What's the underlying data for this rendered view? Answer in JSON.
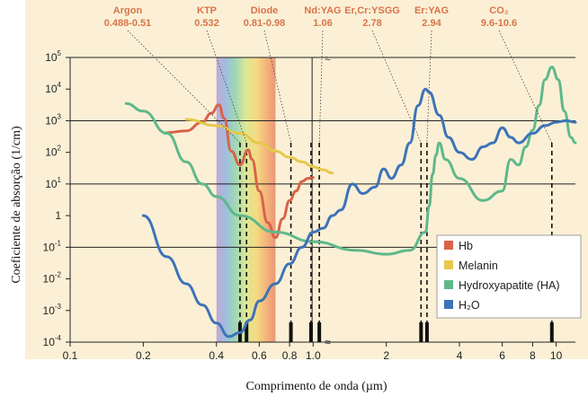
{
  "chart_data": {
    "type": "line",
    "xscale": "log",
    "yscale": "log",
    "xlim": [
      0.1,
      12
    ],
    "ylim": [
      0.0001,
      100000
    ],
    "xlabel": "Comprimento de onda (µm)",
    "ylabel": "Coeficiente de absorção (1/cm)",
    "x_ticks": [
      {
        "v": 0.1,
        "label": "0.1"
      },
      {
        "v": 0.2,
        "label": "0.2"
      },
      {
        "v": 0.4,
        "label": "0.4"
      },
      {
        "v": 0.6,
        "label": "0.6"
      },
      {
        "v": 0.8,
        "label": "0.8"
      },
      {
        "v": 1.0,
        "label": "1.0"
      },
      {
        "v": 2,
        "label": "2"
      },
      {
        "v": 4,
        "label": "4"
      },
      {
        "v": 6,
        "label": "6"
      },
      {
        "v": 8,
        "label": "8"
      },
      {
        "v": 10,
        "label": "10"
      }
    ],
    "y_ticks": [
      {
        "v": 100000,
        "base": "10",
        "exp": "5"
      },
      {
        "v": 10000,
        "base": "10",
        "exp": "4"
      },
      {
        "v": 1000,
        "base": "10",
        "exp": "3"
      },
      {
        "v": 100,
        "base": "10",
        "exp": "2"
      },
      {
        "v": 10,
        "base": "10",
        "exp": "1"
      },
      {
        "v": 1,
        "base": "1",
        "exp": ""
      },
      {
        "v": 0.1,
        "base": "10",
        "exp": "-1"
      },
      {
        "v": 0.01,
        "base": "10",
        "exp": "-2"
      },
      {
        "v": 0.001,
        "base": "10",
        "exp": "-3"
      },
      {
        "v": 0.0001,
        "base": "10",
        "exp": "-4"
      }
    ],
    "gridlines_y": [
      100000,
      1000,
      10,
      0.1
    ],
    "lasers": [
      {
        "name": "Argon",
        "range": "0.488-0.51",
        "x": 0.5
      },
      {
        "name": "KTP",
        "range": "0.532",
        "x": 0.532
      },
      {
        "name": "Diode",
        "range": "0.81-0.98",
        "x": 0.81
      },
      {
        "name": "Diode",
        "range": "",
        "x": 0.98
      },
      {
        "name": "Nd:YAG",
        "range": "1.06",
        "x": 1.06
      },
      {
        "name": "Er,Cr:YSGG",
        "range": "2.78",
        "x": 2.78
      },
      {
        "name": "Er:YAG",
        "range": "2.94",
        "x": 2.94
      },
      {
        "name": "CO₂",
        "range": "9.6-10.6",
        "x": 9.6
      }
    ],
    "visible_spectrum": [
      0.4,
      0.7
    ],
    "series": [
      {
        "name": "Hb",
        "color": "#d9624a",
        "points": [
          [
            0.25,
            420
          ],
          [
            0.3,
            480
          ],
          [
            0.35,
            900
          ],
          [
            0.38,
            1700
          ],
          [
            0.41,
            3200
          ],
          [
            0.43,
            1200
          ],
          [
            0.46,
            110
          ],
          [
            0.5,
            40
          ],
          [
            0.54,
            120
          ],
          [
            0.56,
            60
          ],
          [
            0.6,
            6
          ],
          [
            0.65,
            0.6
          ],
          [
            0.7,
            0.2
          ],
          [
            0.75,
            0.8
          ],
          [
            0.8,
            3
          ],
          [
            0.85,
            6
          ],
          [
            0.9,
            12
          ],
          [
            0.95,
            15
          ],
          [
            1.0,
            16
          ]
        ]
      },
      {
        "name": "Melanin",
        "color": "#e6c84a",
        "points": [
          [
            0.3,
            1100
          ],
          [
            0.4,
            700
          ],
          [
            0.5,
            400
          ],
          [
            0.6,
            200
          ],
          [
            0.7,
            110
          ],
          [
            0.8,
            70
          ],
          [
            0.9,
            50
          ],
          [
            1.0,
            35
          ],
          [
            1.1,
            28
          ],
          [
            1.2,
            22
          ]
        ]
      },
      {
        "name": "Hydroxyapatite (HA)",
        "color": "#5fb88a",
        "points": [
          [
            0.17,
            3500
          ],
          [
            0.2,
            2000
          ],
          [
            0.25,
            400
          ],
          [
            0.3,
            50
          ],
          [
            0.35,
            10
          ],
          [
            0.4,
            4
          ],
          [
            0.5,
            1
          ],
          [
            0.7,
            0.3
          ],
          [
            1.0,
            0.15
          ],
          [
            1.5,
            0.08
          ],
          [
            2,
            0.06
          ],
          [
            2.5,
            0.08
          ],
          [
            2.9,
            0.3
          ],
          [
            3.0,
            2
          ],
          [
            3.1,
            20
          ],
          [
            3.2,
            80
          ],
          [
            3.3,
            200
          ],
          [
            3.5,
            60
          ],
          [
            4,
            15
          ],
          [
            5,
            3
          ],
          [
            6,
            6
          ],
          [
            6.5,
            60
          ],
          [
            7,
            40
          ],
          [
            7.5,
            150
          ],
          [
            8,
            500
          ],
          [
            8.5,
            3000
          ],
          [
            9,
            20000
          ],
          [
            9.6,
            50000
          ],
          [
            10.2,
            20000
          ],
          [
            10.8,
            2000
          ],
          [
            11.5,
            300
          ],
          [
            12,
            200
          ]
        ]
      },
      {
        "name": "H₂O",
        "color": "#3d73b8",
        "points": [
          [
            0.2,
            1
          ],
          [
            0.25,
            0.05
          ],
          [
            0.3,
            0.007
          ],
          [
            0.35,
            0.0015
          ],
          [
            0.4,
            0.0004
          ],
          [
            0.45,
            0.00015
          ],
          [
            0.5,
            0.0002
          ],
          [
            0.55,
            0.0005
          ],
          [
            0.6,
            0.002
          ],
          [
            0.7,
            0.007
          ],
          [
            0.8,
            0.03
          ],
          [
            0.9,
            0.1
          ],
          [
            1.0,
            0.3
          ],
          [
            1.1,
            0.4
          ],
          [
            1.2,
            1
          ],
          [
            1.3,
            1.5
          ],
          [
            1.45,
            10
          ],
          [
            1.6,
            5
          ],
          [
            1.8,
            8
          ],
          [
            1.95,
            30
          ],
          [
            2.1,
            15
          ],
          [
            2.3,
            40
          ],
          [
            2.5,
            200
          ],
          [
            2.7,
            3000
          ],
          [
            2.9,
            10000
          ],
          [
            3.0,
            8000
          ],
          [
            3.3,
            1500
          ],
          [
            3.6,
            300
          ],
          [
            4,
            100
          ],
          [
            4.5,
            60
          ],
          [
            5,
            150
          ],
          [
            5.5,
            200
          ],
          [
            6,
            600
          ],
          [
            6.5,
            300
          ],
          [
            7,
            200
          ],
          [
            8,
            400
          ],
          [
            9,
            700
          ],
          [
            10,
            900
          ],
          [
            11,
            1000
          ],
          [
            12,
            900
          ]
        ]
      }
    ],
    "legend": [
      {
        "label": "Hb",
        "color": "#d9624a"
      },
      {
        "label": "Melanin",
        "color": "#e6c84a"
      },
      {
        "label": "Hydroxyapatite (HA)",
        "color": "#5fb88a"
      },
      {
        "label": "H₂O",
        "color": "#3d73b8"
      }
    ],
    "legend_position": "lower-right",
    "colors": {
      "background": "#fbf0d6",
      "grid": "#222222",
      "label": "#d9744a"
    }
  }
}
